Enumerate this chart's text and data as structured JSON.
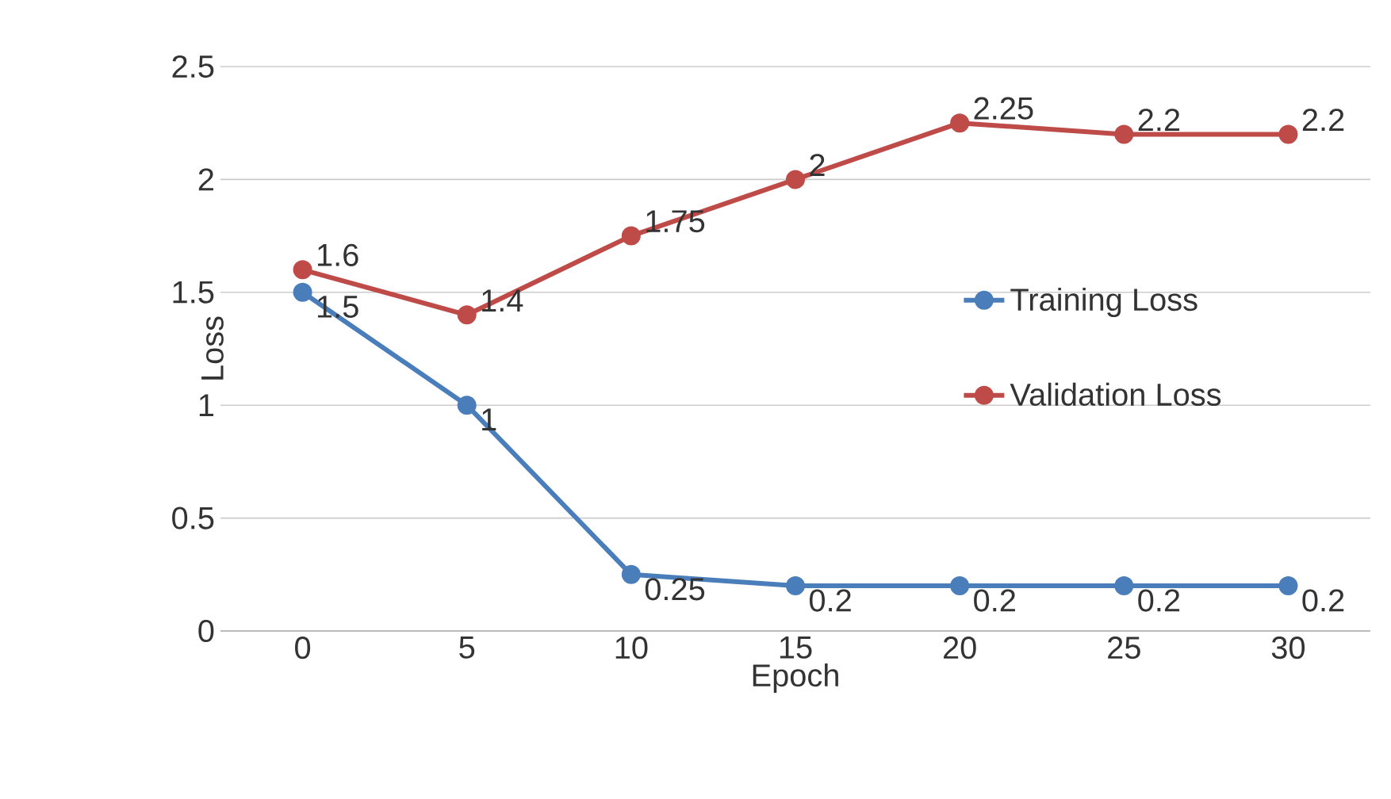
{
  "chart_data": {
    "type": "line",
    "xlabel": "Epoch",
    "ylabel": "Loss",
    "categories": [
      "0",
      "5",
      "10",
      "15",
      "20",
      "25",
      "30"
    ],
    "series": [
      {
        "name": "Training Loss",
        "color": "#4a7ebb",
        "values": [
          1.5,
          1,
          0.25,
          0.2,
          0.2,
          0.2,
          0.2
        ]
      },
      {
        "name": "Validation Loss",
        "color": "#be4b48",
        "values": [
          1.6,
          1.4,
          1.75,
          2,
          2.25,
          2.2,
          2.2
        ]
      }
    ],
    "ylim": [
      0,
      2.5
    ],
    "yticks": [
      0,
      0.5,
      1,
      1.5,
      2,
      2.5
    ],
    "grid": "y",
    "legend": "right",
    "marker": "circle",
    "line_style": "solid",
    "data_labels": true
  }
}
